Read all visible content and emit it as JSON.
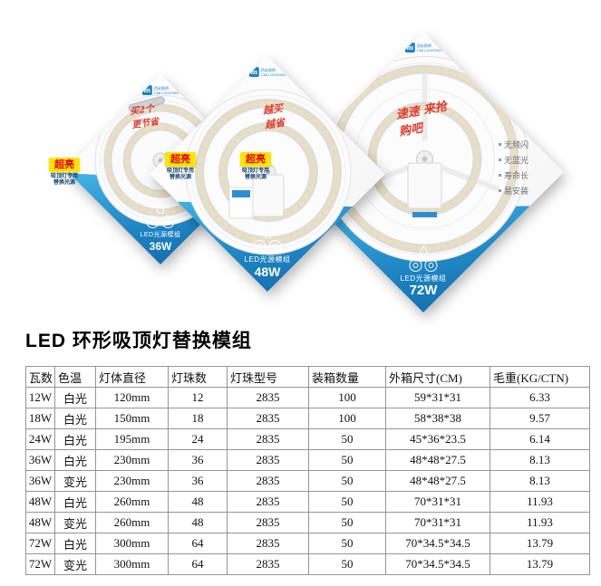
{
  "title": "LED 环形吸顶灯替换模组",
  "brand": {
    "cn": "西米照明",
    "en": "CMI LIGHTING"
  },
  "badges": {
    "label": "超亮",
    "sub": "吸顶灯专用替换光源"
  },
  "products": [
    {
      "module_label": "LED光源模组",
      "wattage": "36W",
      "promo": "买2个 更节省"
    },
    {
      "module_label": "LED光源模组",
      "wattage": "48W",
      "promo": "越买 越省"
    },
    {
      "module_label": "LED光源模组",
      "wattage": "72W",
      "promo": "速速 来抢购吧",
      "features": [
        "无频闪",
        "无蓝光",
        "寿命长",
        "易安装"
      ]
    }
  ],
  "table": {
    "headers": [
      "瓦数",
      "色温",
      "灯体直径",
      "灯珠数",
      "灯珠型号",
      "装箱数量",
      "外箱尺寸(CM)",
      "毛重(KG/CTN)"
    ],
    "rows": [
      [
        "12W",
        "白光",
        "120mm",
        "12",
        "2835",
        "100",
        "59*31*31",
        "6.33"
      ],
      [
        "18W",
        "白光",
        "150mm",
        "18",
        "2835",
        "100",
        "58*38*38",
        "9.57"
      ],
      [
        "24W",
        "白光",
        "195mm",
        "24",
        "2835",
        "50",
        "45*36*23.5",
        "6.14"
      ],
      [
        "36W",
        "白光",
        "230mm",
        "36",
        "2835",
        "50",
        "48*48*27.5",
        "8.13"
      ],
      [
        "36W",
        "变光",
        "230mm",
        "36",
        "2835",
        "50",
        "48*48*27.5",
        "8.13"
      ],
      [
        "48W",
        "白光",
        "260mm",
        "48",
        "2835",
        "50",
        "70*31*31",
        "11.93"
      ],
      [
        "48W",
        "变光",
        "260mm",
        "48",
        "2835",
        "50",
        "70*31*31",
        "11.93"
      ],
      [
        "72W",
        "白光",
        "300mm",
        "64",
        "2835",
        "50",
        "70*34.5*34.5",
        "13.79"
      ],
      [
        "72W",
        "变光",
        "300mm",
        "64",
        "2835",
        "50",
        "70*34.5*34.5",
        "13.79"
      ]
    ]
  },
  "colors": {
    "banner_blue": "#1f86c4",
    "accent_yellow": "#ffe400",
    "promo_red": "#e03c2d"
  }
}
